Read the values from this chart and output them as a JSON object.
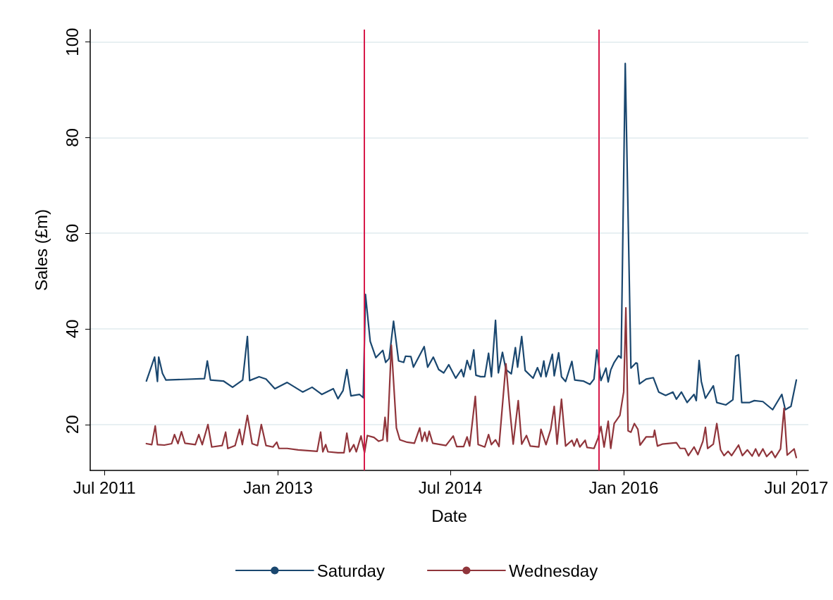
{
  "chart_data": {
    "type": "line",
    "xlabel": "Date",
    "ylabel": "Sales (£m)",
    "xlim": [
      "2011-05-17",
      "2017-08-08"
    ],
    "ylim": [
      10.4,
      102.6
    ],
    "xticks": [
      {
        "value": "2011-07-01",
        "label": "Jul 2011"
      },
      {
        "value": "2013-01-01",
        "label": "Jan 2013"
      },
      {
        "value": "2014-07-01",
        "label": "Jul 2014"
      },
      {
        "value": "2016-01-01",
        "label": "Jan 2016"
      },
      {
        "value": "2017-07-01",
        "label": "Jul 2017"
      }
    ],
    "yticks": [
      20,
      40,
      60,
      80,
      100
    ],
    "grid": "y",
    "legend": "bottom",
    "marker": "none",
    "line_style": "solid",
    "ref_lines": [
      {
        "axis": "x",
        "value": "2013-10-02",
        "color": "#d7194a"
      },
      {
        "axis": "x",
        "value": "2015-10-14",
        "color": "#d7194a"
      }
    ],
    "series": [
      {
        "name": "Saturday",
        "color": "#1a476f",
        "x": [
          "2011-11-11",
          "2011-12-07",
          "2011-12-16",
          "2011-12-20",
          "2012-01-01",
          "2012-01-12",
          "2012-05-13",
          "2012-05-22",
          "2012-06-01",
          "2012-07-12",
          "2012-08-10",
          "2012-09-11",
          "2012-09-26",
          "2012-10-03",
          "2012-11-02",
          "2012-11-24",
          "2012-12-22",
          "2013-01-30",
          "2013-03-20",
          "2013-04-19",
          "2013-05-20",
          "2013-06-25",
          "2013-07-10",
          "2013-07-26",
          "2013-08-07",
          "2013-08-20",
          "2013-09-16",
          "2013-09-28",
          "2013-10-05",
          "2013-10-20",
          "2013-11-07",
          "2013-11-29",
          "2013-12-08",
          "2013-12-19",
          "2014-01-02",
          "2014-01-18",
          "2014-02-03",
          "2014-02-09",
          "2014-02-26",
          "2014-03-06",
          "2014-04-09",
          "2014-04-20",
          "2014-05-08",
          "2014-05-25",
          "2014-06-10",
          "2014-06-26",
          "2014-07-18",
          "2014-08-05",
          "2014-08-12",
          "2014-08-23",
          "2014-09-02",
          "2014-09-13",
          "2014-09-20",
          "2014-10-05",
          "2014-10-18",
          "2014-10-30",
          "2014-11-08",
          "2014-11-21",
          "2014-11-30",
          "2014-12-13",
          "2014-12-24",
          "2015-01-10",
          "2015-01-23",
          "2015-01-30",
          "2015-02-12",
          "2015-02-23",
          "2015-03-20",
          "2015-04-03",
          "2015-04-14",
          "2015-04-23",
          "2015-04-30",
          "2015-05-20",
          "2015-05-26",
          "2015-06-09",
          "2015-06-18",
          "2015-07-01",
          "2015-07-21",
          "2015-07-30",
          "2015-08-26",
          "2015-09-16",
          "2015-09-29",
          "2015-10-08",
          "2015-10-21",
          "2015-11-06",
          "2015-11-13",
          "2015-11-21",
          "2015-12-02",
          "2015-12-16",
          "2015-12-24",
          "2016-01-06",
          "2016-01-24",
          "2016-02-09",
          "2016-02-13",
          "2016-02-20",
          "2016-03-12",
          "2016-04-04",
          "2016-04-21",
          "2016-05-13",
          "2016-06-05",
          "2016-06-16",
          "2016-07-02",
          "2016-07-20",
          "2016-08-11",
          "2016-08-18",
          "2016-08-27",
          "2016-09-03",
          "2016-09-16",
          "2016-10-11",
          "2016-10-22",
          "2016-11-20",
          "2016-12-12",
          "2016-12-21",
          "2016-12-30",
          "2017-01-09",
          "2017-02-03",
          "2017-02-18",
          "2017-03-17",
          "2017-04-17",
          "2017-05-16",
          "2017-05-27",
          "2017-06-14",
          "2017-07-01"
        ],
        "values": [
          29.1,
          34.1,
          29.0,
          34.1,
          30.7,
          29.3,
          29.6,
          33.3,
          29.3,
          29.1,
          27.8,
          29.3,
          38.4,
          29.2,
          30.0,
          29.5,
          27.5,
          28.8,
          26.8,
          27.8,
          26.3,
          27.5,
          25.4,
          27.1,
          31.5,
          26.0,
          26.3,
          25.6,
          47.2,
          37.4,
          34.0,
          35.5,
          33.0,
          33.8,
          41.6,
          33.3,
          33.0,
          34.3,
          34.2,
          32.0,
          36.3,
          32.0,
          34.1,
          31.5,
          30.8,
          32.5,
          29.7,
          31.5,
          30.0,
          33.4,
          31.5,
          35.6,
          30.3,
          30.0,
          30.0,
          34.9,
          30.0,
          41.8,
          30.8,
          35.1,
          31.5,
          30.6,
          36.1,
          32.0,
          38.4,
          31.3,
          29.7,
          31.9,
          30.0,
          33.3,
          30.0,
          34.7,
          30.2,
          35.0,
          30.0,
          29.0,
          33.2,
          29.3,
          29.1,
          28.4,
          29.5,
          35.6,
          29.2,
          31.8,
          28.9,
          31.4,
          33.0,
          34.4,
          33.9,
          95.5,
          31.8,
          32.9,
          32.8,
          28.5,
          29.5,
          29.8,
          26.8,
          26.1,
          26.8,
          25.3,
          26.8,
          24.6,
          26.3,
          25.0,
          33.4,
          29.0,
          25.5,
          28.1,
          24.6,
          24.1,
          25.2,
          34.3,
          34.6,
          24.6,
          24.6,
          25.0,
          24.8,
          23.1,
          26.3,
          23.1,
          23.8,
          29.3
        ]
      },
      {
        "name": "Wednesday",
        "color": "#90353b",
        "x": [
          "2011-11-11",
          "2011-11-28",
          "2011-12-09",
          "2011-12-16",
          "2012-01-07",
          "2012-01-30",
          "2012-02-08",
          "2012-02-19",
          "2012-03-01",
          "2012-03-12",
          "2012-04-14",
          "2012-04-25",
          "2012-05-06",
          "2012-05-24",
          "2012-06-05",
          "2012-07-08",
          "2012-07-19",
          "2012-07-26",
          "2012-08-18",
          "2012-09-01",
          "2012-09-10",
          "2012-09-26",
          "2012-10-11",
          "2012-10-28",
          "2012-11-09",
          "2012-11-24",
          "2012-12-16",
          "2012-12-28",
          "2013-01-04",
          "2013-01-30",
          "2013-03-06",
          "2013-05-05",
          "2013-05-16",
          "2013-05-23",
          "2013-06-01",
          "2013-06-08",
          "2013-07-10",
          "2013-07-29",
          "2013-08-07",
          "2013-08-16",
          "2013-08-29",
          "2013-09-06",
          "2013-09-21",
          "2013-10-02",
          "2013-10-11",
          "2013-11-01",
          "2013-11-16",
          "2013-11-29",
          "2013-12-06",
          "2013-12-13",
          "2013-12-26",
          "2014-01-11",
          "2014-01-22",
          "2014-02-14",
          "2014-03-09",
          "2014-03-26",
          "2014-04-02",
          "2014-04-11",
          "2014-04-18",
          "2014-04-25",
          "2014-05-06",
          "2014-06-17",
          "2014-07-10",
          "2014-07-21",
          "2014-08-12",
          "2014-08-23",
          "2014-08-31",
          "2014-09-18",
          "2014-09-27",
          "2014-10-18",
          "2014-10-30",
          "2014-11-08",
          "2014-11-21",
          "2014-12-02",
          "2014-12-24",
          "2015-01-05",
          "2015-01-16",
          "2015-02-01",
          "2015-02-12",
          "2015-02-27",
          "2015-03-11",
          "2015-04-07",
          "2015-04-14",
          "2015-04-30",
          "2015-05-15",
          "2015-05-26",
          "2015-06-04",
          "2015-06-18",
          "2015-07-01",
          "2015-07-21",
          "2015-07-28",
          "2015-08-06",
          "2015-08-15",
          "2015-09-01",
          "2015-09-07",
          "2015-09-29",
          "2015-10-12",
          "2015-10-21",
          "2015-10-31",
          "2015-11-13",
          "2015-11-21",
          "2015-12-02",
          "2015-12-20",
          "2016-01-01",
          "2016-01-08",
          "2016-01-15",
          "2016-01-24",
          "2016-02-04",
          "2016-02-15",
          "2016-02-22",
          "2016-03-12",
          "2016-04-04",
          "2016-04-08",
          "2016-04-17",
          "2016-05-02",
          "2016-06-16",
          "2016-06-28",
          "2016-07-13",
          "2016-07-24",
          "2016-08-11",
          "2016-08-23",
          "2016-09-08",
          "2016-09-16",
          "2016-09-23",
          "2016-10-11",
          "2016-10-22",
          "2016-11-03",
          "2016-11-14",
          "2016-11-27",
          "2016-12-08",
          "2016-12-30",
          "2017-01-11",
          "2017-01-27",
          "2017-02-11",
          "2017-02-22",
          "2017-03-04",
          "2017-03-17",
          "2017-03-29",
          "2017-04-14",
          "2017-04-25",
          "2017-05-12",
          "2017-05-23",
          "2017-06-02",
          "2017-06-24",
          "2017-07-01"
        ],
        "values": [
          16.0,
          15.8,
          19.7,
          15.8,
          15.7,
          16.0,
          17.9,
          16.0,
          18.5,
          16.1,
          15.8,
          17.9,
          15.8,
          20.0,
          15.3,
          15.6,
          18.4,
          15.0,
          15.6,
          19.0,
          15.8,
          21.9,
          16.0,
          15.6,
          20.0,
          15.6,
          15.3,
          16.3,
          15.0,
          15.0,
          14.7,
          14.4,
          18.4,
          14.3,
          15.8,
          14.3,
          14.1,
          14.1,
          18.2,
          14.3,
          15.8,
          14.3,
          17.6,
          14.1,
          17.7,
          17.3,
          16.5,
          16.8,
          21.5,
          16.5,
          36.6,
          19.3,
          16.8,
          16.3,
          16.1,
          19.3,
          16.5,
          18.4,
          16.5,
          18.6,
          16.1,
          15.6,
          17.6,
          15.4,
          15.4,
          17.4,
          15.5,
          25.9,
          15.8,
          15.3,
          17.9,
          15.8,
          16.8,
          15.4,
          32.7,
          23.4,
          15.9,
          25.0,
          15.9,
          17.7,
          15.5,
          15.3,
          19.0,
          15.8,
          19.0,
          23.8,
          15.9,
          25.3,
          15.5,
          16.7,
          15.5,
          17.0,
          15.3,
          16.7,
          15.2,
          15.0,
          17.2,
          19.6,
          15.3,
          20.7,
          15.0,
          20.2,
          21.9,
          26.8,
          44.4,
          18.7,
          18.4,
          20.2,
          19.0,
          15.7,
          17.4,
          17.4,
          18.8,
          15.5,
          15.9,
          16.2,
          15.0,
          15.0,
          13.5,
          15.3,
          13.7,
          16.5,
          19.4,
          15.0,
          15.9,
          20.2,
          14.7,
          13.5,
          14.4,
          13.5,
          15.7,
          13.5,
          14.7,
          13.4,
          14.9,
          13.4,
          14.9,
          13.3,
          14.4,
          13.1,
          14.9,
          23.4,
          13.6,
          14.9,
          13.1
        ]
      }
    ]
  }
}
